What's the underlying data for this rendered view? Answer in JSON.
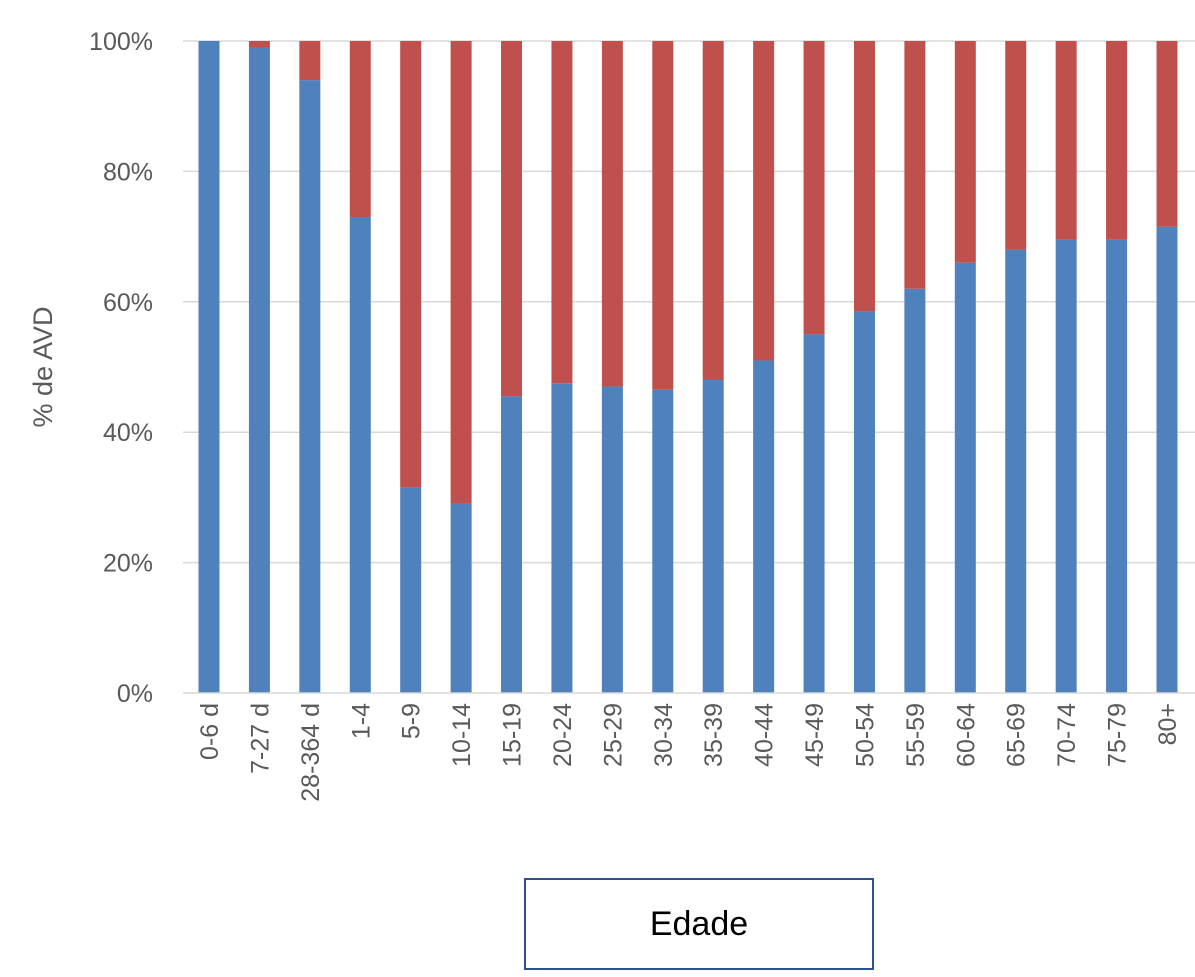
{
  "chart_data": {
    "type": "bar",
    "stacked": true,
    "title": "",
    "xlabel": "Edade",
    "ylabel": "% de AVD",
    "ylim": [
      0,
      100
    ],
    "y_ticks": [
      "0%",
      "20%",
      "40%",
      "60%",
      "80%",
      "100%"
    ],
    "y_tick_values": [
      0,
      20,
      40,
      60,
      80,
      100
    ],
    "grid": true,
    "legend": "none",
    "categories": [
      "0-6 d",
      "7-27 d",
      "28-364 d",
      "1-4",
      "5-9",
      "10-14",
      "15-19",
      "20-24",
      "25-29",
      "30-34",
      "35-39",
      "40-44",
      "45-49",
      "50-54",
      "55-59",
      "60-64",
      "65-69",
      "70-74",
      "75-79",
      "80+"
    ],
    "series": [
      {
        "color": "#4F81BD",
        "values": [
          100,
          99,
          94,
          73,
          31.5,
          29,
          45.5,
          47.5,
          47,
          46.5,
          48,
          51,
          55,
          58.5,
          62,
          66,
          68,
          69.5,
          69.5,
          71.5
        ]
      },
      {
        "color": "#C0504D",
        "values": [
          0,
          1,
          6,
          27,
          68.5,
          71,
          54.5,
          52.5,
          53,
          53.5,
          52,
          49,
          45,
          41.5,
          38,
          34,
          32,
          30.5,
          30.5,
          28.5
        ]
      }
    ]
  }
}
